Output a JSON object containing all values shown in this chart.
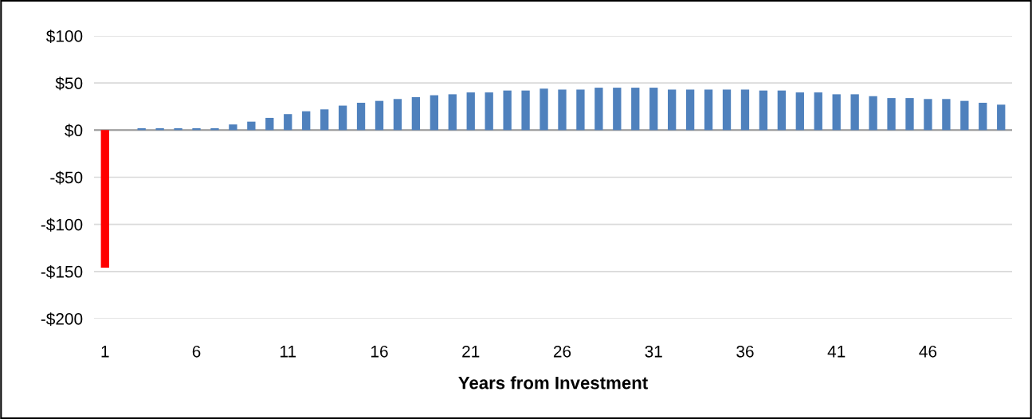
{
  "chart_data": {
    "type": "bar",
    "xlabel": "Years from Investment",
    "categories": [
      "1",
      null,
      null,
      null,
      null,
      "6",
      null,
      null,
      null,
      null,
      "11",
      null,
      null,
      null,
      null,
      "16",
      null,
      null,
      null,
      null,
      "21",
      null,
      null,
      null,
      null,
      "26",
      null,
      null,
      null,
      null,
      "31",
      null,
      null,
      null,
      null,
      "36",
      null,
      null,
      null,
      null,
      "41",
      null,
      null,
      null,
      null,
      "46",
      null,
      null,
      null,
      null
    ],
    "values": [
      -146,
      0,
      2,
      2,
      2,
      2,
      2,
      6,
      9,
      13,
      17,
      20,
      22,
      26,
      29,
      31,
      33,
      35,
      37,
      38,
      40,
      40,
      42,
      42,
      44,
      43,
      43,
      45,
      45,
      45,
      45,
      43,
      43,
      43,
      43,
      43,
      42,
      42,
      40,
      40,
      38,
      38,
      36,
      34,
      34,
      33,
      33,
      31,
      29,
      27
    ],
    "colors": [
      "#ff0000",
      "#4f81bd",
      "#4f81bd",
      "#4f81bd",
      "#4f81bd",
      "#4f81bd",
      "#4f81bd",
      "#4f81bd",
      "#4f81bd",
      "#4f81bd",
      "#4f81bd",
      "#4f81bd",
      "#4f81bd",
      "#4f81bd",
      "#4f81bd",
      "#4f81bd",
      "#4f81bd",
      "#4f81bd",
      "#4f81bd",
      "#4f81bd",
      "#4f81bd",
      "#4f81bd",
      "#4f81bd",
      "#4f81bd",
      "#4f81bd",
      "#4f81bd",
      "#4f81bd",
      "#4f81bd",
      "#4f81bd",
      "#4f81bd",
      "#4f81bd",
      "#4f81bd",
      "#4f81bd",
      "#4f81bd",
      "#4f81bd",
      "#4f81bd",
      "#4f81bd",
      "#4f81bd",
      "#4f81bd",
      "#4f81bd",
      "#4f81bd",
      "#4f81bd",
      "#4f81bd",
      "#4f81bd",
      "#4f81bd",
      "#4f81bd",
      "#4f81bd",
      "#4f81bd",
      "#4f81bd",
      "#4f81bd"
    ],
    "ylim": [
      -200,
      100
    ],
    "yticks": [
      {
        "value": -200,
        "label": "-$200"
      },
      {
        "value": -150,
        "label": "-$150"
      },
      {
        "value": -100,
        "label": "-$100"
      },
      {
        "value": -50,
        "label": "-$50"
      },
      {
        "value": 0,
        "label": "$0"
      },
      {
        "value": 50,
        "label": "$50"
      },
      {
        "value": 100,
        "label": "$100"
      }
    ],
    "grid": "y",
    "legend": false
  }
}
